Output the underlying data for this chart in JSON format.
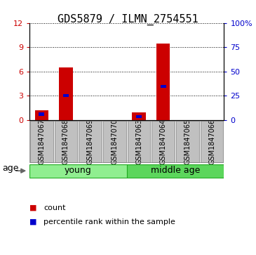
{
  "title": "GDS5879 / ILMN_2754551",
  "samples": [
    "GSM1847067",
    "GSM1847068",
    "GSM1847069",
    "GSM1847070",
    "GSM1847063",
    "GSM1847064",
    "GSM1847065",
    "GSM1847066"
  ],
  "red_values": [
    1.2,
    6.5,
    0,
    0,
    1.0,
    9.5,
    0,
    0
  ],
  "blue_pct": [
    6.25,
    25.4,
    0,
    0,
    3.75,
    34.6,
    0,
    0
  ],
  "ylim_left": [
    0,
    12
  ],
  "ylim_right": [
    0,
    100
  ],
  "yticks_left": [
    0,
    3,
    6,
    9,
    12
  ],
  "yticks_right": [
    0,
    25,
    50,
    75,
    100
  ],
  "ytick_labels_right": [
    "0",
    "25",
    "50",
    "75",
    "100%"
  ],
  "groups": [
    {
      "label": "young",
      "start": 0,
      "end": 3,
      "color": "#90EE90"
    },
    {
      "label": "middle age",
      "start": 4,
      "end": 7,
      "color": "#5CD65C"
    }
  ],
  "group_label": "age",
  "bar_width": 0.55,
  "red_color": "#CC0000",
  "blue_color": "#0000CC",
  "bg_color": "#FFFFFF",
  "sample_box_color": "#C0C0C0",
  "sample_box_edge": "#888888",
  "legend_count": "count",
  "legend_pct": "percentile rank within the sample",
  "title_fontsize": 11,
  "tick_fontsize": 8,
  "sample_fontsize": 7,
  "label_fontsize": 9,
  "legend_fontsize": 8
}
